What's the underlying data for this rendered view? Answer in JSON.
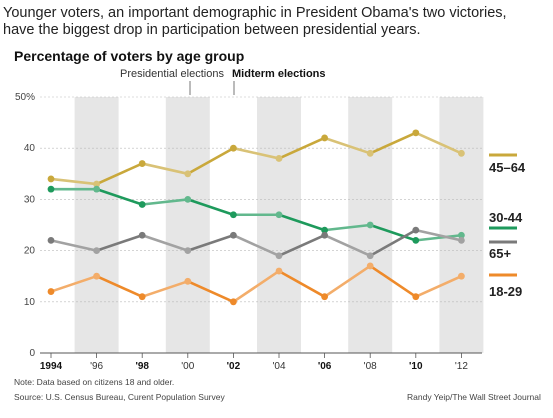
{
  "subtitle": {
    "line1": "Younger voters, an important demographic in President Obama's two victories,",
    "line2": "have the biggest drop in participation between presidential years."
  },
  "legend": {
    "presidential": "Presidential elections",
    "midterm": "Midterm elections"
  },
  "note": "Note: Data based on citizens 18 and older.",
  "source": "Source: U.S. Census Bureau, Curent Population Survey",
  "credit": "Randy Yeip/The Wall Street Journal",
  "colors": {
    "45-64": "#c9a83b",
    "30-44": "#1e9a5c",
    "65+": "#7a7a7a",
    "18-29": "#ee8a2a",
    "shade": "#e6e6e6"
  },
  "chart_data": {
    "type": "line",
    "title": "Percentage of voters by age group",
    "x": [
      "1994",
      "'96",
      "'98",
      "'00",
      "'02",
      "'04",
      "'06",
      "'08",
      "'10",
      "'12"
    ],
    "x_bold": [
      true,
      false,
      true,
      false,
      true,
      false,
      true,
      false,
      true,
      false
    ],
    "presidential_years": [
      "'96",
      "'00",
      "'04",
      "'08",
      "'12"
    ],
    "ylim": [
      0,
      50
    ],
    "yticks": [
      {
        "value": 0,
        "label": "0"
      },
      {
        "value": 10,
        "label": "10"
      },
      {
        "value": 20,
        "label": "20"
      },
      {
        "value": 30,
        "label": "30"
      },
      {
        "value": 40,
        "label": "40"
      },
      {
        "value": 50,
        "label": "50%"
      }
    ],
    "grid": true,
    "series": [
      {
        "name": "45–64",
        "key": "45-64",
        "values": [
          34,
          33,
          37,
          35,
          40,
          38,
          42,
          39,
          43,
          39
        ]
      },
      {
        "name": "30-44",
        "key": "30-44",
        "values": [
          32,
          32,
          29,
          30,
          27,
          27,
          24,
          25,
          22,
          23
        ]
      },
      {
        "name": "65+",
        "key": "65+",
        "values": [
          22,
          20,
          23,
          20,
          23,
          19,
          23,
          19,
          24,
          22
        ]
      },
      {
        "name": "18-29",
        "key": "18-29",
        "values": [
          12,
          15,
          11,
          14,
          10,
          16,
          11,
          17,
          11,
          15
        ]
      }
    ]
  }
}
